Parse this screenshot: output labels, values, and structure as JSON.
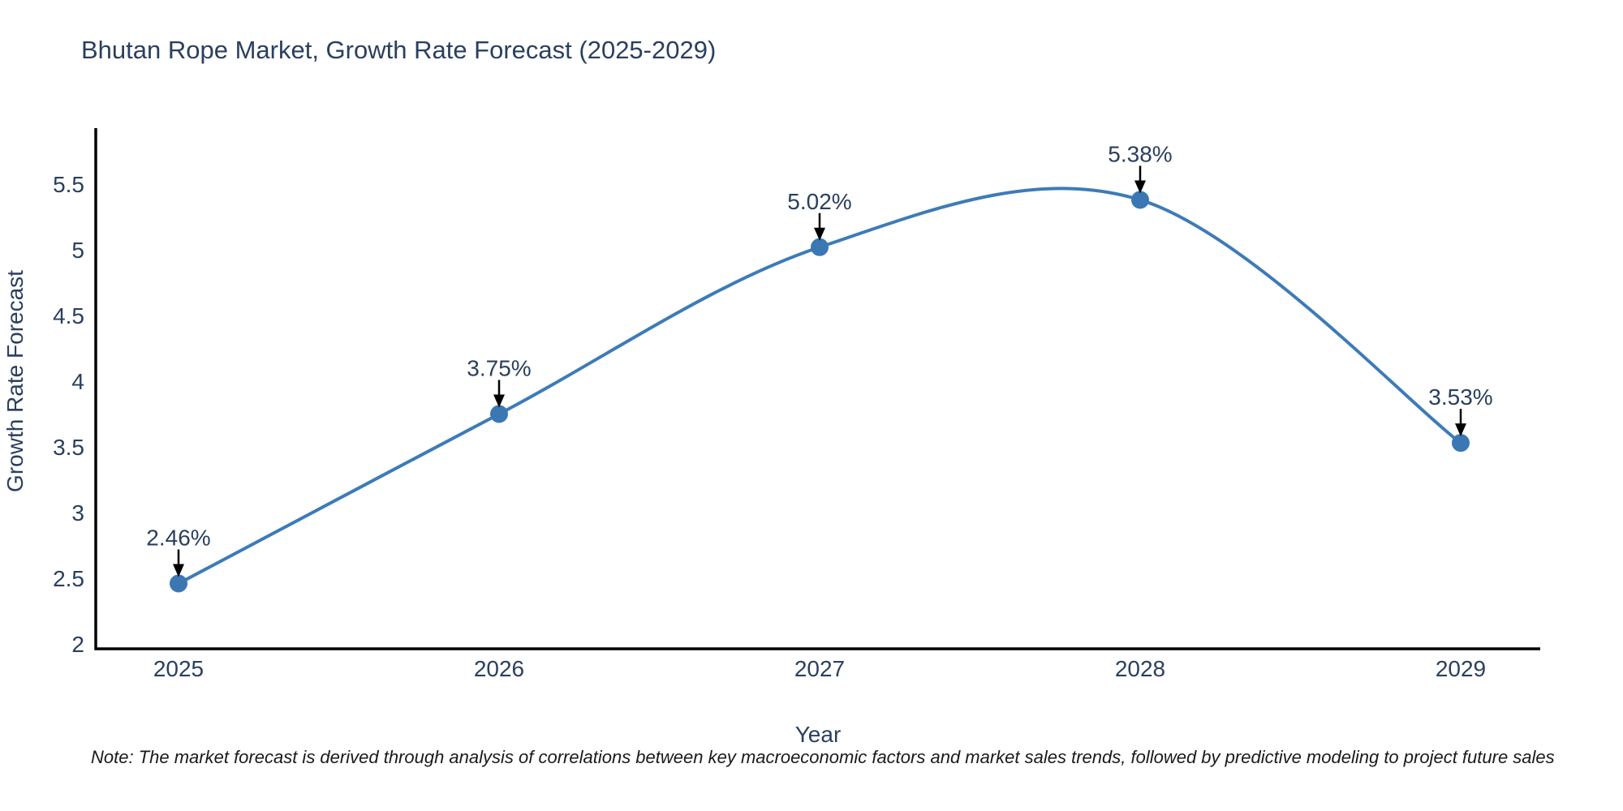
{
  "chart": {
    "title": "Bhutan Rope Market, Growth Rate Forecast (2025-2029)",
    "xlabel": "Year",
    "ylabel": "Growth Rate Forecast"
  },
  "footnote": {
    "text": "Note: The market forecast is derived through analysis of correlations between key macroeconomic factors and market sales trends, followed by predictive modeling to project future sales"
  },
  "chart_data": {
    "type": "line",
    "line_shape": "spline",
    "markers": true,
    "grid": false,
    "legend": false,
    "title": "Bhutan Rope Market, Growth Rate Forecast (2025-2029)",
    "xlabel": "Year",
    "ylabel": "Growth Rate Forecast",
    "categories": [
      "2025",
      "2026",
      "2027",
      "2028",
      "2029"
    ],
    "series": [
      {
        "name": "Growth Rate Forecast",
        "values": [
          2.46,
          3.75,
          5.02,
          5.38,
          3.53
        ]
      }
    ],
    "point_labels": [
      "2.46%",
      "3.75%",
      "5.02%",
      "5.38%",
      "3.53%"
    ],
    "ylim": [
      2,
      5.5
    ],
    "y_ticks": [
      "2",
      "2.5",
      "3",
      "3.5",
      "4",
      "4.5",
      "5",
      "5.5"
    ],
    "colors": {
      "line": "#3d7bb8",
      "marker": "#3a77b3",
      "axis": "#000000",
      "arrow": "#000000",
      "text": "#2a3f5f"
    }
  }
}
